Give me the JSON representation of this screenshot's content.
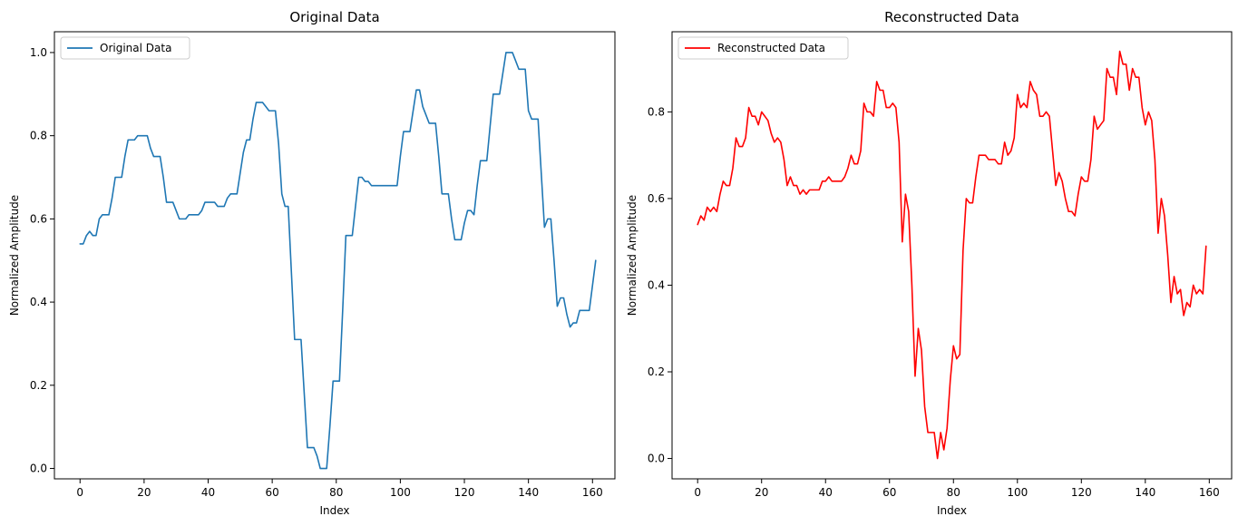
{
  "chart_data": [
    {
      "type": "line",
      "title": "Original Data",
      "xlabel": "Index",
      "ylabel": "Normalized Amplitude",
      "xlim": [
        -8,
        167
      ],
      "ylim": [
        -0.025,
        1.05
      ],
      "xticks": [
        0,
        20,
        40,
        60,
        80,
        100,
        120,
        140,
        160
      ],
      "yticks": [
        0.0,
        0.2,
        0.4,
        0.6,
        0.8,
        1.0
      ],
      "ytick_labels": [
        "0.0",
        "0.2",
        "0.4",
        "0.6",
        "0.8",
        "1.0"
      ],
      "grid": false,
      "legend": "upper-left",
      "series": [
        {
          "name": "Original Data",
          "color": "#1f77b4",
          "x_start": 0,
          "values": [
            0.54,
            0.54,
            0.56,
            0.57,
            0.56,
            0.56,
            0.6,
            0.61,
            0.61,
            0.61,
            0.65,
            0.7,
            0.7,
            0.7,
            0.75,
            0.79,
            0.79,
            0.79,
            0.8,
            0.8,
            0.8,
            0.8,
            0.77,
            0.75,
            0.75,
            0.75,
            0.7,
            0.64,
            0.64,
            0.64,
            0.62,
            0.6,
            0.6,
            0.6,
            0.61,
            0.61,
            0.61,
            0.61,
            0.62,
            0.64,
            0.64,
            0.64,
            0.64,
            0.63,
            0.63,
            0.63,
            0.65,
            0.66,
            0.66,
            0.66,
            0.71,
            0.76,
            0.79,
            0.79,
            0.84,
            0.88,
            0.88,
            0.88,
            0.87,
            0.86,
            0.86,
            0.86,
            0.78,
            0.66,
            0.63,
            0.63,
            0.47,
            0.31,
            0.31,
            0.31,
            0.18,
            0.05,
            0.05,
            0.05,
            0.03,
            0.0,
            0.0,
            0.0,
            0.1,
            0.21,
            0.21,
            0.21,
            0.38,
            0.56,
            0.56,
            0.56,
            0.63,
            0.7,
            0.7,
            0.69,
            0.69,
            0.68,
            0.68,
            0.68,
            0.68,
            0.68,
            0.68,
            0.68,
            0.68,
            0.68,
            0.75,
            0.81,
            0.81,
            0.81,
            0.86,
            0.91,
            0.91,
            0.87,
            0.85,
            0.83,
            0.83,
            0.83,
            0.75,
            0.66,
            0.66,
            0.66,
            0.6,
            0.55,
            0.55,
            0.55,
            0.59,
            0.62,
            0.62,
            0.61,
            0.68,
            0.74,
            0.74,
            0.74,
            0.82,
            0.9,
            0.9,
            0.9,
            0.95,
            1.0,
            1.0,
            1.0,
            0.98,
            0.96,
            0.96,
            0.96,
            0.86,
            0.84,
            0.84,
            0.84,
            0.71,
            0.58,
            0.6,
            0.6,
            0.5,
            0.39,
            0.41,
            0.41,
            0.37,
            0.34,
            0.35,
            0.35,
            0.38,
            0.38,
            0.38,
            0.38,
            0.44,
            0.5
          ]
        }
      ]
    },
    {
      "type": "line",
      "title": "Reconstructed Data",
      "xlabel": "Index",
      "ylabel": "Normalized Amplitude",
      "xlim": [
        -8,
        167
      ],
      "ylim": [
        -0.047,
        0.985
      ],
      "xticks": [
        0,
        20,
        40,
        60,
        80,
        100,
        120,
        140,
        160
      ],
      "yticks": [
        0.0,
        0.2,
        0.4,
        0.6,
        0.8
      ],
      "ytick_labels": [
        "0.0",
        "0.2",
        "0.4",
        "0.6",
        "0.8"
      ],
      "grid": false,
      "legend": "upper-left",
      "series": [
        {
          "name": "Reconstructed Data",
          "color": "#ff0000",
          "x_start": 0,
          "values": [
            0.54,
            0.56,
            0.55,
            0.58,
            0.57,
            0.58,
            0.57,
            0.61,
            0.64,
            0.63,
            0.63,
            0.67,
            0.74,
            0.72,
            0.72,
            0.74,
            0.81,
            0.79,
            0.79,
            0.77,
            0.8,
            0.79,
            0.78,
            0.75,
            0.73,
            0.74,
            0.73,
            0.69,
            0.63,
            0.65,
            0.63,
            0.63,
            0.61,
            0.62,
            0.61,
            0.62,
            0.62,
            0.62,
            0.62,
            0.64,
            0.64,
            0.65,
            0.64,
            0.64,
            0.64,
            0.64,
            0.65,
            0.67,
            0.7,
            0.68,
            0.68,
            0.71,
            0.82,
            0.8,
            0.8,
            0.79,
            0.87,
            0.85,
            0.85,
            0.81,
            0.81,
            0.82,
            0.81,
            0.73,
            0.5,
            0.61,
            0.57,
            0.4,
            0.19,
            0.3,
            0.25,
            0.12,
            0.06,
            0.06,
            0.06,
            0.0,
            0.06,
            0.02,
            0.07,
            0.18,
            0.26,
            0.23,
            0.24,
            0.48,
            0.6,
            0.59,
            0.59,
            0.65,
            0.7,
            0.7,
            0.7,
            0.69,
            0.69,
            0.69,
            0.68,
            0.68,
            0.73,
            0.7,
            0.71,
            0.74,
            0.84,
            0.81,
            0.82,
            0.81,
            0.87,
            0.85,
            0.84,
            0.79,
            0.79,
            0.8,
            0.79,
            0.71,
            0.63,
            0.66,
            0.64,
            0.6,
            0.57,
            0.57,
            0.56,
            0.61,
            0.65,
            0.64,
            0.64,
            0.69,
            0.79,
            0.76,
            0.77,
            0.78,
            0.9,
            0.88,
            0.88,
            0.84,
            0.94,
            0.91,
            0.91,
            0.85,
            0.9,
            0.88,
            0.88,
            0.81,
            0.77,
            0.8,
            0.78,
            0.69,
            0.52,
            0.6,
            0.56,
            0.47,
            0.36,
            0.42,
            0.38,
            0.39,
            0.33,
            0.36,
            0.35,
            0.4,
            0.38,
            0.39,
            0.38,
            0.49
          ]
        }
      ]
    }
  ]
}
